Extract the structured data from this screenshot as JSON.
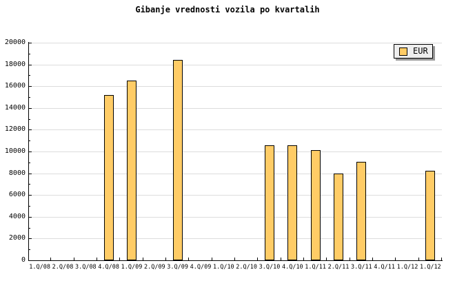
{
  "chart_data": {
    "type": "bar",
    "title": "Gibanje vrednosti vozila po kvartalih",
    "categories": [
      "1.Q/08",
      "2.Q/08",
      "3.Q/08",
      "4.Q/08",
      "1.Q/09",
      "2.Q/09",
      "3.Q/09",
      "4.Q/09",
      "1.Q/10",
      "2.Q/10",
      "3.Q/10",
      "4.Q/10",
      "1.Q/11",
      "2.Q/11",
      "3.Q/11",
      "4.Q/11",
      "1.Q/12",
      "1.Q/12"
    ],
    "series": [
      {
        "name": "EUR",
        "values": [
          0,
          0,
          0,
          15200,
          16500,
          0,
          18400,
          0,
          0,
          0,
          10600,
          10600,
          10150,
          7950,
          9050,
          0,
          0,
          8250
        ]
      }
    ],
    "xlabel": "",
    "ylabel": "",
    "ylim": [
      0,
      20000
    ],
    "ytick_step": 2000,
    "yminor_step": 1000,
    "grid": "horizontal-major",
    "legend_position": "top-right",
    "colors": {
      "bar_fill": "#FFCC66",
      "bar_border": "#000000",
      "gridline": "#DCDCDC",
      "axis": "#000000",
      "legend_background": "#EEEEEE",
      "legend_shadow": "#999999",
      "background": "#FFFFFF",
      "text": "#000000"
    }
  },
  "legend": {
    "label": "EUR"
  }
}
